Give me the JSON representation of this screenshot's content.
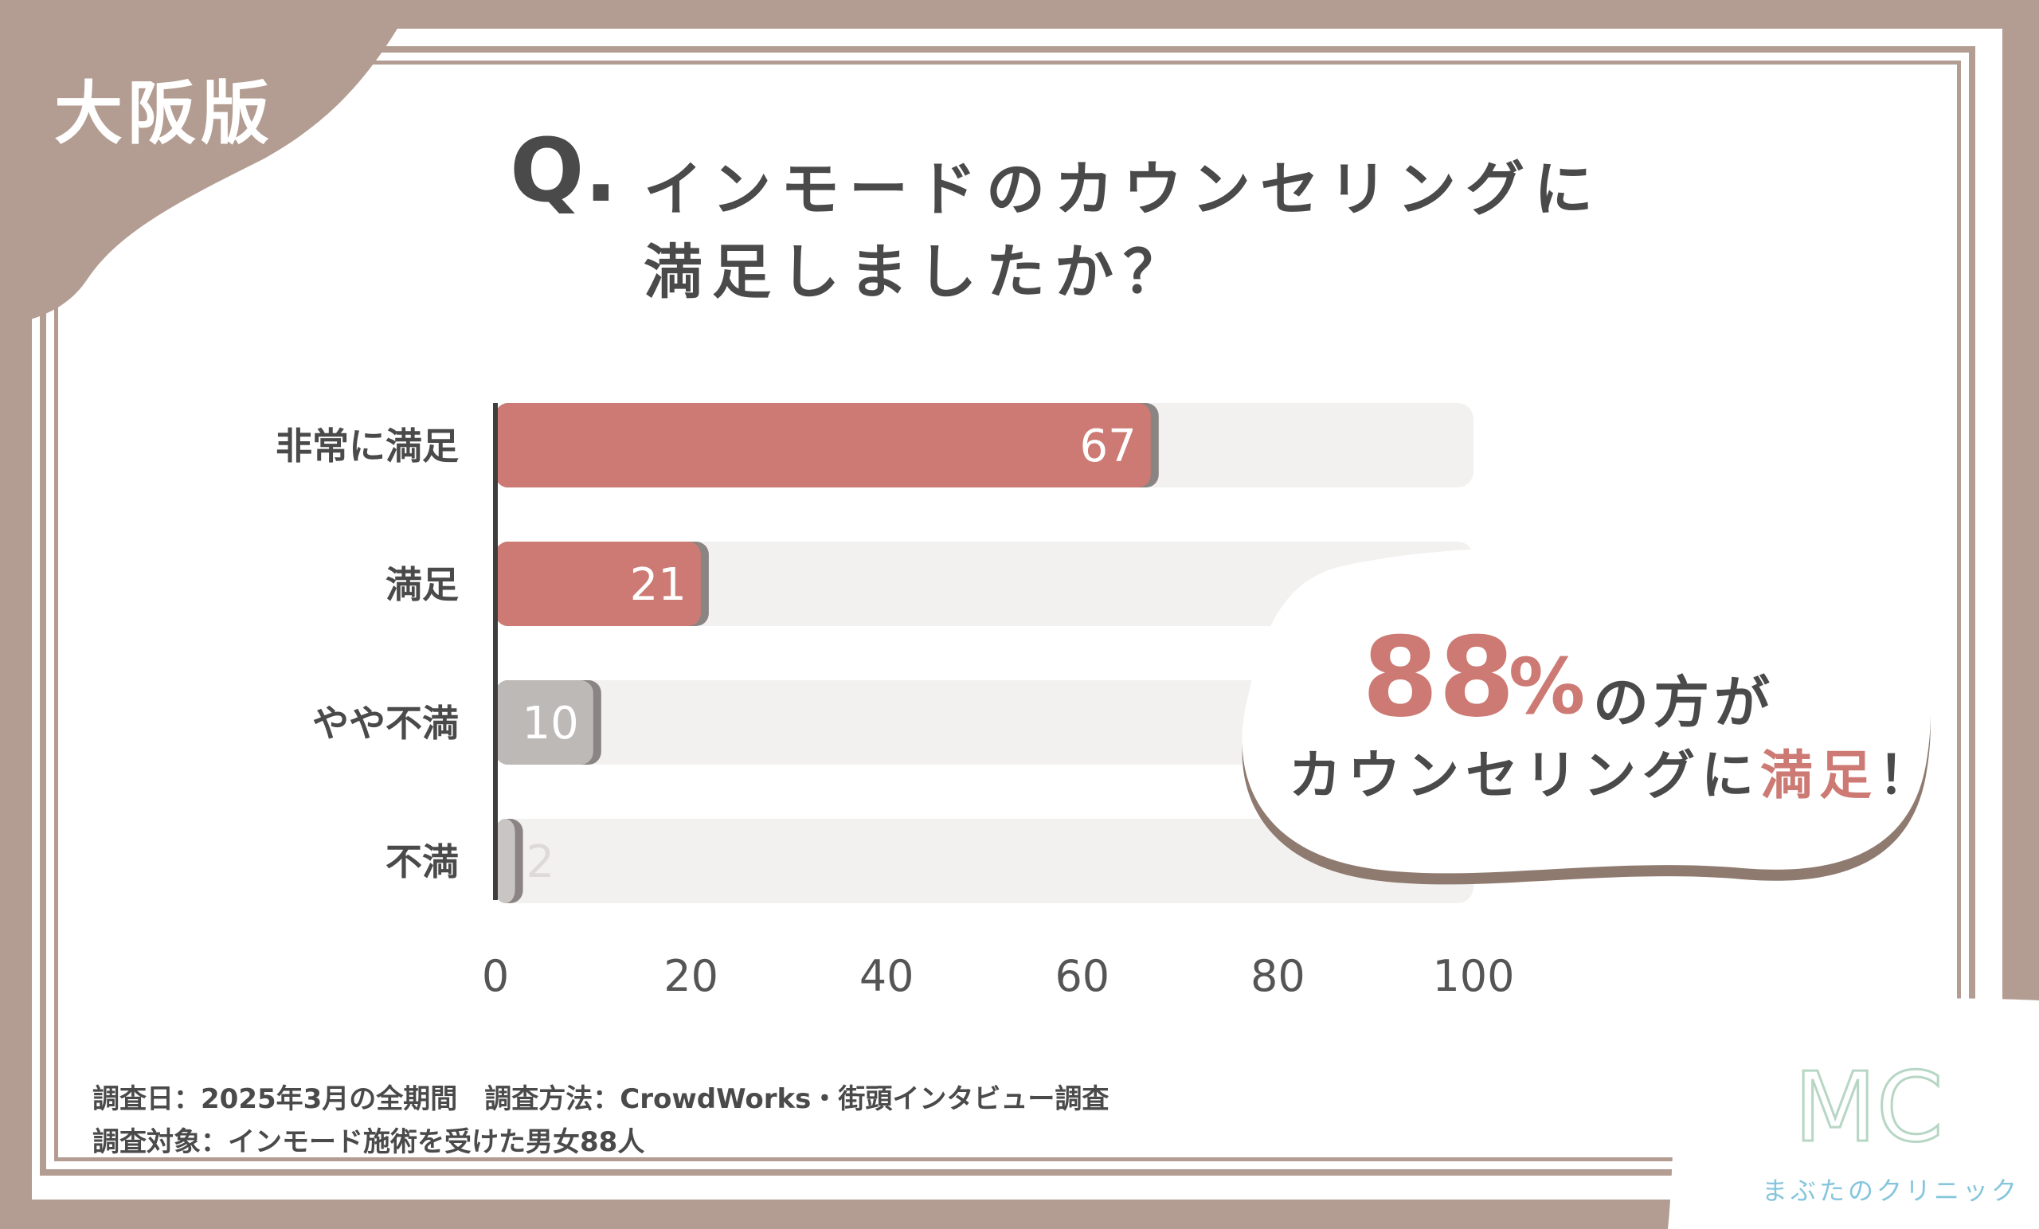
{
  "region_badge": "大阪版",
  "question": {
    "mark": "Q.",
    "line1": "インモードのカウンセリングに",
    "line2": "満足しましたか？"
  },
  "chart_data": {
    "type": "bar",
    "orientation": "horizontal",
    "categories": [
      "非常に満足",
      "満足",
      "やや不満",
      "不満"
    ],
    "values": [
      67,
      21,
      10,
      2
    ],
    "colors": [
      "#cc7a73",
      "#cc7a73",
      "#bdb9b6",
      "#c8c5c3"
    ],
    "xlim": [
      0,
      100
    ],
    "xticks": [
      0,
      20,
      40,
      60,
      80,
      100
    ],
    "title": "",
    "xlabel": "",
    "ylabel": ""
  },
  "callout": {
    "percent": "88",
    "percent_sign": "%",
    "rest": "の方が",
    "line2_prefix": "カウンセリングに",
    "line2_highlight": "満足",
    "line2_suffix": "！"
  },
  "footnotes": {
    "line1": "調査日：2025年3月の全期間　調査方法：CrowdWorks・街頭インタビュー調査",
    "line2": "調査対象：インモード施術を受けた男女88人"
  },
  "logo": {
    "mark": "MC",
    "name": "まぶたのクリニック"
  },
  "colors": {
    "frame": "#b39c91",
    "accent": "#cc7a73",
    "text": "#4a4a4a",
    "logo": "#86c6dc"
  }
}
